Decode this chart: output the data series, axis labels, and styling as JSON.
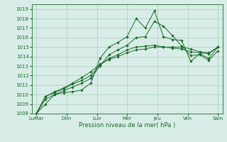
{
  "title": "",
  "xlabel": "Pression niveau de la mer( hPa )",
  "bg_color": "#d8ede8",
  "grid_color": "#aaccbb",
  "line_color": "#1a6b2a",
  "ylim": [
    1008,
    1019.5
  ],
  "yticks": [
    1008,
    1009,
    1010,
    1011,
    1012,
    1013,
    1014,
    1015,
    1016,
    1017,
    1018,
    1019
  ],
  "xtick_labels": [
    "LuMar",
    "Dim",
    "Lun",
    "Mer",
    "Jeu",
    "Ven",
    "Sam"
  ],
  "xtick_pos": [
    0,
    1,
    2,
    3,
    4,
    5,
    6
  ],
  "series": [
    [
      1008.0,
      1009.0,
      1010.0,
      1010.2,
      1010.3,
      1010.5,
      1011.2,
      1013.8,
      1015.0,
      1015.5,
      1016.1,
      1018.0,
      1017.0,
      1018.8,
      1016.1,
      1015.8,
      1015.7,
      1013.5,
      1014.3,
      1013.8,
      1015.0
    ],
    [
      1008.0,
      1009.5,
      1010.0,
      1010.4,
      1010.8,
      1011.2,
      1011.7,
      1013.0,
      1014.2,
      1014.7,
      1015.2,
      1016.0,
      1016.1,
      1017.7,
      1017.2,
      1016.2,
      1015.1,
      1014.1,
      1014.2,
      1013.6,
      1014.6
    ],
    [
      1008.0,
      1009.8,
      1010.2,
      1010.6,
      1011.1,
      1011.5,
      1012.0,
      1013.1,
      1013.8,
      1014.2,
      1014.7,
      1015.0,
      1015.1,
      1015.2,
      1015.0,
      1014.9,
      1014.8,
      1014.5,
      1014.4,
      1014.3,
      1015.0
    ],
    [
      1008.0,
      1009.8,
      1010.3,
      1010.7,
      1011.2,
      1011.8,
      1012.4,
      1013.2,
      1013.7,
      1014.0,
      1014.4,
      1014.7,
      1014.8,
      1015.0,
      1015.0,
      1015.0,
      1015.0,
      1014.8,
      1014.5,
      1014.4,
      1015.0
    ]
  ],
  "n_points": 21,
  "marker": "D",
  "marker_size": 1.8,
  "linewidth": 0.7
}
